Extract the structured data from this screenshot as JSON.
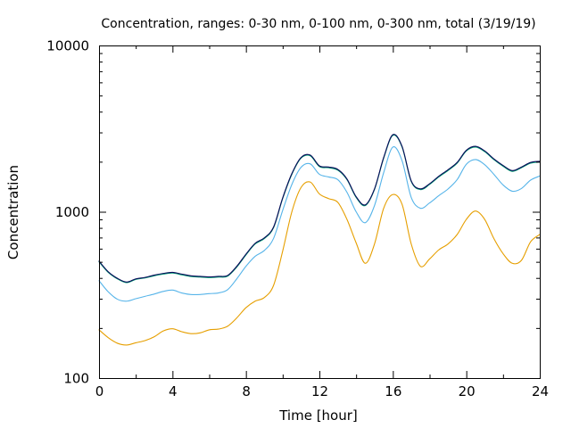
{
  "chart_data": {
    "type": "line",
    "title": "Concentration, ranges: 0-30 nm, 0-100 nm, 0-300 nm, total (3/19/19)",
    "xlabel": "Time [hour]",
    "ylabel": "Concentration",
    "xlim": [
      0,
      24
    ],
    "ylim": [
      100,
      10000
    ],
    "yscale": "log",
    "grid": false,
    "x_ticks": [
      0,
      4,
      8,
      12,
      16,
      20,
      24
    ],
    "x_tick_labels": [
      "0",
      "4",
      "8",
      "12",
      "16",
      "20",
      "24"
    ],
    "y_ticks": [
      100,
      1000,
      10000
    ],
    "y_tick_labels": [
      "100",
      "1000",
      "10000"
    ],
    "x": [
      0,
      0.5,
      1,
      1.5,
      2,
      2.5,
      3,
      3.5,
      4,
      4.5,
      5,
      5.5,
      6,
      6.5,
      7,
      7.5,
      8,
      8.5,
      9,
      9.5,
      10,
      10.5,
      11,
      11.5,
      12,
      12.5,
      13,
      13.5,
      14,
      14.5,
      15,
      15.5,
      16,
      16.5,
      17,
      17.5,
      18,
      18.5,
      19,
      19.5,
      20,
      20.5,
      21,
      21.5,
      22,
      22.5,
      23,
      23.5,
      24
    ],
    "series": [
      {
        "color": "#e69f00",
        "values": [
          195,
          175,
          162,
          158,
          163,
          168,
          177,
          192,
          198,
          190,
          185,
          187,
          195,
          197,
          205,
          230,
          265,
          290,
          305,
          360,
          580,
          1000,
          1400,
          1510,
          1280,
          1200,
          1140,
          900,
          650,
          490,
          640,
          1050,
          1270,
          1110,
          640,
          470,
          520,
          590,
          640,
          730,
          900,
          1010,
          900,
          690,
          560,
          490,
          510,
          660,
          730
        ]
      },
      {
        "color": "#56b4e9",
        "values": [
          385,
          330,
          298,
          290,
          300,
          310,
          320,
          332,
          338,
          325,
          318,
          318,
          322,
          325,
          340,
          395,
          470,
          540,
          585,
          690,
          1020,
          1460,
          1850,
          1940,
          1680,
          1620,
          1560,
          1310,
          1000,
          860,
          1090,
          1720,
          2450,
          2030,
          1220,
          1050,
          1130,
          1250,
          1370,
          1560,
          1930,
          2060,
          1920,
          1680,
          1450,
          1330,
          1380,
          1550,
          1640
        ]
      },
      {
        "color": "#009e73",
        "values": [
          500,
          432,
          395,
          375,
          392,
          400,
          412,
          422,
          428,
          418,
          408,
          405,
          402,
          405,
          410,
          465,
          550,
          640,
          690,
          800,
          1200,
          1680,
          2100,
          2170,
          1870,
          1840,
          1780,
          1560,
          1220,
          1090,
          1360,
          2100,
          2880,
          2450,
          1520,
          1360,
          1460,
          1620,
          1770,
          1960,
          2320,
          2450,
          2300,
          2060,
          1880,
          1750,
          1840,
          1960,
          1990
        ]
      },
      {
        "color": "#0a0a5a",
        "values": [
          505,
          436,
          398,
          378,
          395,
          403,
          416,
          426,
          432,
          422,
          412,
          409,
          406,
          409,
          414,
          470,
          556,
          646,
          697,
          808,
          1212,
          1697,
          2121,
          2192,
          1889,
          1858,
          1798,
          1576,
          1232,
          1101,
          1374,
          2121,
          2909,
          2475,
          1535,
          1374,
          1475,
          1636,
          1788,
          1980,
          2343,
          2475,
          2323,
          2081,
          1899,
          1768,
          1858,
          1980,
          2010
        ]
      }
    ]
  }
}
